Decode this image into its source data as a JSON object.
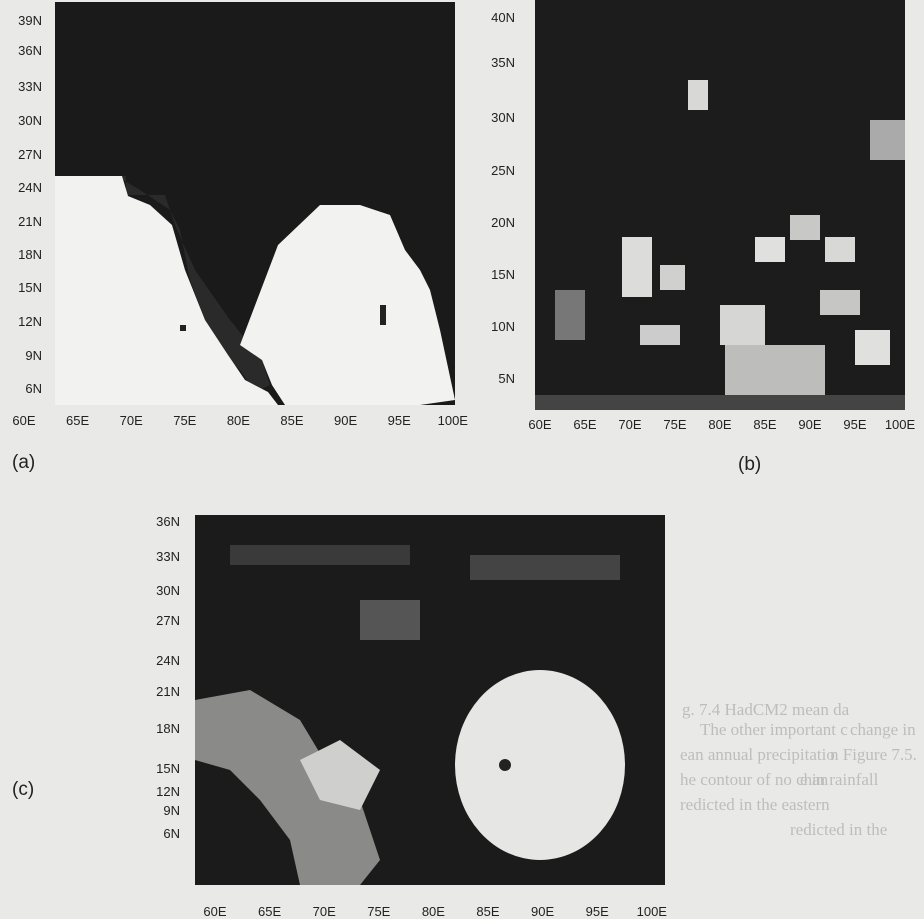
{
  "panels": [
    {
      "label": "(a)",
      "yticks": [
        "39N",
        "36N",
        "33N",
        "30N",
        "27N",
        "24N",
        "21N",
        "18N",
        "15N",
        "12N",
        "9N",
        "6N"
      ],
      "xticks": [
        "60E",
        "65E",
        "70E",
        "75E",
        "80E",
        "85E",
        "90E",
        "95E",
        "100E"
      ]
    },
    {
      "label": "(b)",
      "yticks": [
        "40N",
        "35N",
        "30N",
        "25N",
        "20N",
        "15N",
        "10N",
        "5N"
      ],
      "xticks": [
        "60E",
        "65E",
        "70E",
        "75E",
        "80E",
        "85E",
        "90E",
        "95E",
        "100E"
      ]
    },
    {
      "label": "(c)",
      "yticks": [
        "36N",
        "33N",
        "30N",
        "27N",
        "24N",
        "21N",
        "18N",
        "15N",
        "12N",
        "9N",
        "6N"
      ],
      "xticks": [
        "60E",
        "65E",
        "70E",
        "75E",
        "80E",
        "85E",
        "90E",
        "95E",
        "100E"
      ]
    }
  ],
  "show_through": {
    "caption": "g. 7.4 HadCM2 mean da",
    "lines": [
      "The other important c",
      "change in",
      "ean annual precipitatio",
      "n Figure 7.5.",
      "he contour of no chan",
      "e in rainfall",
      "redicted in the eastern",
      "redicted in the"
    ]
  }
}
